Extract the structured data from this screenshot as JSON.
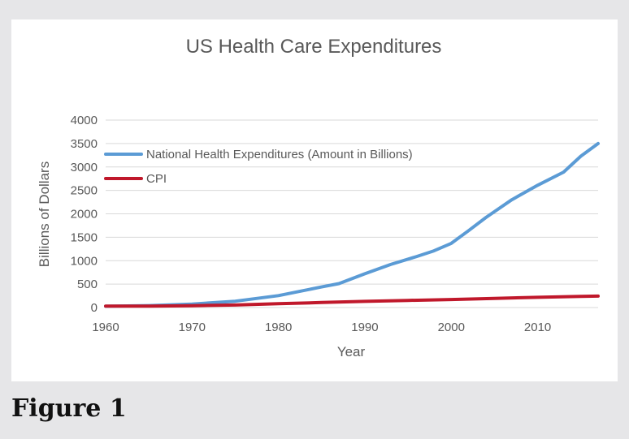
{
  "figure_caption": "Figure 1",
  "colors": {
    "nhe": "#5b9bd5",
    "cpi": "#c0182b",
    "grid": "#d9d9d9",
    "text": "#595959"
  },
  "chart_data": {
    "type": "line",
    "title": "US Health Care Expenditures",
    "xlabel": "Year",
    "ylabel": "Billions of Dollars",
    "xlim": [
      1960,
      2017
    ],
    "ylim": [
      0,
      4000
    ],
    "xticks": [
      1960,
      1970,
      1980,
      1990,
      2000,
      2010
    ],
    "yticks": [
      0,
      500,
      1000,
      1500,
      2000,
      2500,
      3000,
      3500,
      4000
    ],
    "grid": true,
    "legend_position": "top-left",
    "series": [
      {
        "name": "National Health Expenditures (Amount in Billions)",
        "color_key": "nhe",
        "x": [
          1960,
          1965,
          1970,
          1975,
          1980,
          1985,
          1987,
          1990,
          1993,
          1996,
          1998,
          2000,
          2002,
          2004,
          2007,
          2010,
          2013,
          2015,
          2017
        ],
        "y": [
          27,
          42,
          75,
          135,
          255,
          440,
          510,
          720,
          920,
          1090,
          1210,
          1370,
          1640,
          1920,
          2300,
          2610,
          2890,
          3230,
          3500
        ]
      },
      {
        "name": "CPI",
        "color_key": "cpi",
        "x": [
          1960,
          1965,
          1970,
          1975,
          1980,
          1985,
          1990,
          1995,
          2000,
          2005,
          2010,
          2015,
          2017
        ],
        "y": [
          30,
          32,
          39,
          54,
          82,
          107,
          131,
          152,
          172,
          195,
          218,
          237,
          245
        ]
      }
    ]
  }
}
